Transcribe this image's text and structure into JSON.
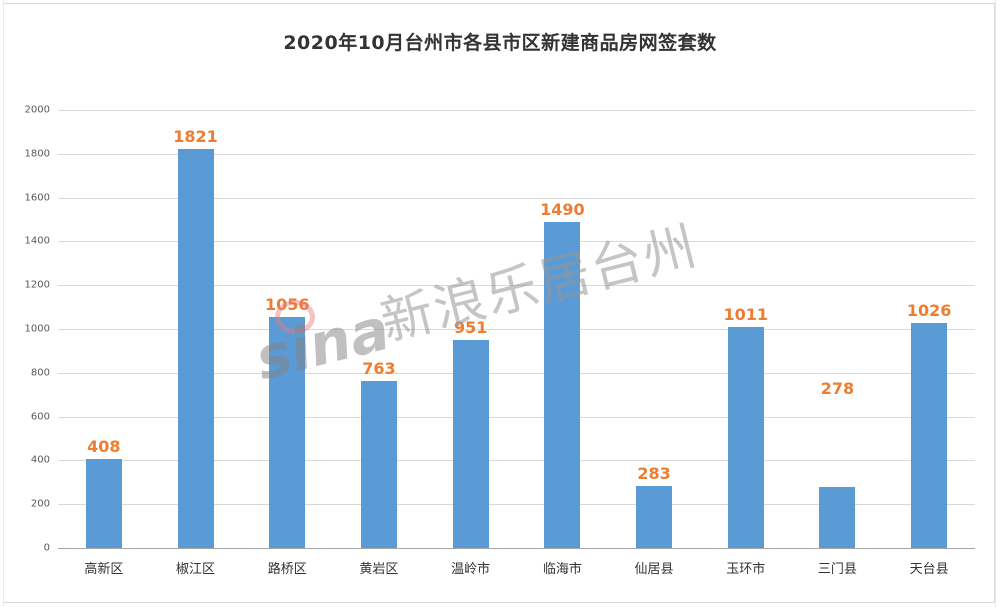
{
  "chart_data": {
    "type": "bar",
    "title": "2020年10月台州市各县市区新建商品房网签套数",
    "xlabel": "",
    "ylabel": "",
    "categories": [
      "高新区",
      "椒江区",
      "路桥区",
      "黄岩区",
      "温岭市",
      "临海市",
      "仙居县",
      "玉环市",
      "三门县",
      "天台县"
    ],
    "values": [
      408,
      1821,
      1056,
      763,
      951,
      1490,
      283,
      1011,
      278,
      1026
    ],
    "ylim": [
      0,
      2000
    ],
    "yticks": [
      0,
      200,
      400,
      600,
      800,
      1000,
      1200,
      1400,
      1600,
      1800,
      2000
    ],
    "grid": true,
    "legend": null,
    "colors": {
      "bar": "#5b9bd5",
      "data_label": "#ed7d31",
      "grid": "#d9d9d9",
      "axis": "#a6a6a6"
    },
    "data_labels": [
      "408",
      "1821",
      "1056",
      "763",
      "951",
      "1490",
      "283",
      "1011",
      "278",
      "1026"
    ],
    "annotations": [
      "新浪乐居台州 watermark"
    ]
  },
  "title": "2020年10月台州市各县市区新建商品房网签套数",
  "watermark": {
    "brand": "sina",
    "text": "新浪乐居台州"
  },
  "y_ticks": [
    "0",
    "200",
    "400",
    "600",
    "800",
    "1000",
    "1200",
    "1400",
    "1600",
    "1800",
    "2000"
  ]
}
